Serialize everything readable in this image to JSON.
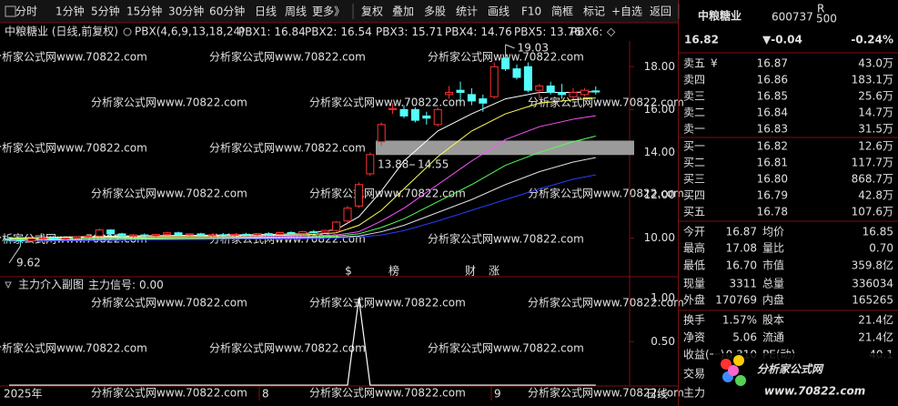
{
  "toolbar": [
    "分时",
    "1分钟",
    "5分钟",
    "15分钟",
    "30分钟",
    "60分钟",
    "日线",
    "周线",
    "更多》",
    "复权",
    "叠加",
    "多股",
    "统计",
    "画线",
    "F10",
    "简框",
    "标记",
    "+自选",
    "返回"
  ],
  "watermark": "分析家公式网www.70822.com",
  "chart_data": [
    {
      "type": "candlestick",
      "title": "中粮糖业 (日线,前复权)",
      "indicator": "PBX(4,6,9,13,18,24)",
      "ylim": [
        8.2,
        19.2
      ],
      "yticks": [
        {
          "value": 10,
          "label": "10.00"
        },
        {
          "value": 12,
          "label": "12.00"
        },
        {
          "value": 14,
          "label": "14.00"
        },
        {
          "value": 16,
          "label": "16.00"
        },
        {
          "value": 18,
          "label": "18.00"
        }
      ],
      "up_color": "#ff3232",
      "down_color": "#54fcfc",
      "candles": [
        [
          9.95,
          10.02,
          9.85,
          9.92
        ],
        [
          9.92,
          9.98,
          9.62,
          9.88
        ],
        [
          9.88,
          10.0,
          9.82,
          9.97
        ],
        [
          9.97,
          10.05,
          9.9,
          10.0
        ],
        [
          10.0,
          10.05,
          9.92,
          9.95
        ],
        [
          9.95,
          10.02,
          9.9,
          10.0
        ],
        [
          10.0,
          10.1,
          9.95,
          10.06
        ],
        [
          10.06,
          10.15,
          10.0,
          10.1
        ],
        [
          10.1,
          10.45,
          10.05,
          10.38
        ],
        [
          10.38,
          10.42,
          10.15,
          10.2
        ],
        [
          10.2,
          10.25,
          10.05,
          10.1
        ],
        [
          10.1,
          10.2,
          10.02,
          10.15
        ],
        [
          10.15,
          10.22,
          10.08,
          10.12
        ],
        [
          10.12,
          10.2,
          10.05,
          10.18
        ],
        [
          10.18,
          10.3,
          10.12,
          10.25
        ],
        [
          10.25,
          10.3,
          10.12,
          10.15
        ],
        [
          10.15,
          10.22,
          10.08,
          10.2
        ],
        [
          10.2,
          10.25,
          10.1,
          10.12
        ],
        [
          10.12,
          10.2,
          10.05,
          10.16
        ],
        [
          10.16,
          10.22,
          10.1,
          10.14
        ],
        [
          10.14,
          10.2,
          10.06,
          10.18
        ],
        [
          10.18,
          10.25,
          10.12,
          10.16
        ],
        [
          10.16,
          10.24,
          10.1,
          10.21
        ],
        [
          10.21,
          10.28,
          10.15,
          10.19
        ],
        [
          10.19,
          10.3,
          10.14,
          10.26
        ],
        [
          10.26,
          10.32,
          10.18,
          10.22
        ],
        [
          10.22,
          10.34,
          10.16,
          10.3
        ],
        [
          10.3,
          10.38,
          10.22,
          10.28
        ],
        [
          10.28,
          10.4,
          10.24,
          10.36
        ],
        [
          10.36,
          10.8,
          10.3,
          10.75
        ],
        [
          10.8,
          11.5,
          10.7,
          11.4
        ],
        [
          11.5,
          12.6,
          11.4,
          12.5
        ],
        [
          13.0,
          14.0,
          12.9,
          13.9
        ],
        [
          14.5,
          15.4,
          14.3,
          15.3
        ],
        [
          16.0,
          16.3,
          15.8,
          16.05
        ],
        [
          16.0,
          16.2,
          15.6,
          15.7
        ],
        [
          16.0,
          16.1,
          15.4,
          15.5
        ],
        [
          15.7,
          15.9,
          15.3,
          15.6
        ],
        [
          15.3,
          16.1,
          15.2,
          16.0
        ],
        [
          16.7,
          17.1,
          16.5,
          16.8
        ],
        [
          16.9,
          17.3,
          16.4,
          16.8
        ],
        [
          16.7,
          17.0,
          16.2,
          16.4
        ],
        [
          16.5,
          16.7,
          15.9,
          16.3
        ],
        [
          16.6,
          18.2,
          16.5,
          18.0
        ],
        [
          18.4,
          19.03,
          17.8,
          17.9
        ],
        [
          17.9,
          18.1,
          17.4,
          17.5
        ],
        [
          18.0,
          18.2,
          16.8,
          16.9
        ],
        [
          16.9,
          17.2,
          16.5,
          17.1
        ],
        [
          17.1,
          17.3,
          16.7,
          16.8
        ],
        [
          16.8,
          17.2,
          16.5,
          16.7
        ],
        [
          16.6,
          17.0,
          16.5,
          16.8
        ],
        [
          16.7,
          17.0,
          16.6,
          16.9
        ],
        [
          16.87,
          17.08,
          16.7,
          16.82
        ]
      ],
      "x": [
        0,
        10,
        20,
        26,
        29,
        31,
        33,
        35,
        38,
        41,
        44,
        47,
        50,
        52
      ],
      "series": [
        {
          "name": "PBX1:",
          "last": 16.84,
          "color": "#ffffff",
          "values": [
            10.0,
            10.1,
            10.15,
            10.2,
            10.4,
            11.0,
            12.2,
            13.6,
            15.0,
            15.8,
            16.5,
            16.8,
            16.8,
            16.84
          ]
        },
        {
          "name": "PBX2:",
          "last": 16.54,
          "color": "#ffff54",
          "values": [
            10.0,
            10.05,
            10.1,
            10.15,
            10.25,
            10.6,
            11.3,
            12.3,
            13.8,
            15.0,
            15.8,
            16.3,
            16.45,
            16.54
          ]
        },
        {
          "name": "PBX3:",
          "last": 15.71,
          "color": "#ff54ff",
          "values": [
            9.95,
            10.0,
            10.05,
            10.1,
            10.15,
            10.3,
            10.8,
            11.4,
            12.5,
            13.6,
            14.6,
            15.2,
            15.55,
            15.71
          ]
        },
        {
          "name": "PBX4:",
          "last": 14.76,
          "color": "#54ff54",
          "values": [
            9.95,
            10.0,
            10.02,
            10.05,
            10.1,
            10.2,
            10.5,
            10.9,
            11.7,
            12.5,
            13.4,
            14.0,
            14.5,
            14.76
          ]
        },
        {
          "name": "PBX5:",
          "last": 13.76,
          "color": "#e0e0e0",
          "values": [
            9.9,
            9.95,
            10.0,
            10.02,
            10.05,
            10.1,
            10.3,
            10.6,
            11.2,
            11.8,
            12.5,
            13.1,
            13.55,
            13.76
          ]
        },
        {
          "name": "PBX6:",
          "color": "#2a3cff",
          "values": [
            9.85,
            9.9,
            9.95,
            9.97,
            10.0,
            10.05,
            10.15,
            10.35,
            10.8,
            11.3,
            11.8,
            12.3,
            12.75,
            12.95
          ]
        }
      ],
      "high_label": 19.03,
      "low_label": 9.62,
      "zone": [
        13.88,
        14.55
      ],
      "events": [
        {
          "text": "$",
          "color": "#ff3232"
        },
        {
          "text": "榜",
          "color": "#ffaa00"
        },
        {
          "text": "财",
          "color": "#8cc8ff"
        },
        {
          "text": "涨",
          "color": "#ff5050"
        }
      ],
      "x_labels": [
        "2025年",
        "8",
        "9",
        "日线"
      ]
    },
    {
      "type": "line",
      "title": "主力介入副图",
      "ylim": [
        -0.01,
        1.1
      ],
      "yticks": [
        {
          "value": 0.5,
          "label": "0.50"
        },
        {
          "value": 1,
          "label": "1.00"
        }
      ],
      "series": [
        {
          "name": "主力信号:",
          "last": {
            "value": 0,
            "label": "0.00"
          },
          "color": "#ffffff",
          "x": [
            0,
            30,
            31,
            32,
            52
          ],
          "values": [
            0,
            0,
            1,
            0,
            0
          ]
        }
      ]
    }
  ],
  "quote": {
    "name": "中粮糖业",
    "code": "600737",
    "badge_top": "R",
    "badge_bottom": "500",
    "price": "16.82",
    "change": "▼-0.04",
    "pct": "-0.24%",
    "color": "#54ff54",
    "order_book": [
      {
        "label": "卖五",
        "icon": "¥",
        "price": "16.87",
        "volume": "43.0万",
        "color": "#ff3232"
      },
      {
        "label": "卖四",
        "price": "16.86",
        "volume": "183.1万",
        "color": "#e0e0e0"
      },
      {
        "label": "卖三",
        "price": "16.85",
        "volume": "25.6万",
        "color": "#54ff54"
      },
      {
        "label": "卖二",
        "price": "16.84",
        "volume": "14.7万",
        "color": "#54ff54"
      },
      {
        "label": "卖一",
        "price": "16.83",
        "volume": "31.5万",
        "color": "#54ff54"
      },
      {
        "label": "买一",
        "price": "16.82",
        "volume": "12.6万",
        "color": "#54ff54"
      },
      {
        "label": "买二",
        "price": "16.81",
        "volume": "117.7万",
        "color": "#54ff54"
      },
      {
        "label": "买三",
        "price": "16.80",
        "volume": "868.7万",
        "color": "#54ff54"
      },
      {
        "label": "买四",
        "price": "16.79",
        "volume": "42.8万",
        "color": "#54ff54"
      },
      {
        "label": "买五",
        "price": "16.78",
        "volume": "107.6万",
        "color": "#54ff54"
      }
    ],
    "stats": [
      {
        "l1": "今开",
        "v1": "16.87",
        "c1": "#ff3232",
        "l2": "均价",
        "v2": "16.85",
        "c2": "#54ff54"
      },
      {
        "l1": "最高",
        "v1": "17.08",
        "c1": "#ff3232",
        "l2": "量比",
        "v2": "0.70",
        "c2": "#54ff54"
      },
      {
        "l1": "最低",
        "v1": "16.70",
        "c1": "#54ff54",
        "l2": "市值",
        "v2": "359.8亿",
        "c2": "#e0e0e0"
      },
      {
        "l1": "现量",
        "v1": "3311",
        "c1": "#ff54ff",
        "l2": "总量",
        "v2": "336034",
        "c2": "#e0e0e0"
      },
      {
        "l1": "外盘",
        "v1": "170769",
        "c1": "#ff3232",
        "l2": "内盘",
        "v2": "165265",
        "c2": "#54ff54"
      },
      {
        "l1": "换手",
        "v1": "1.57%",
        "c1": "#e0e0e0",
        "l2": "股本",
        "v2": "21.4亿",
        "c2": "#e0e0e0"
      },
      {
        "l1": "净资",
        "v1": "5.06",
        "c1": "#e0e0e0",
        "l2": "流通",
        "v2": "21.4亿",
        "c2": "#e0e0e0"
      },
      {
        "l1": "收益(一)",
        "v1": "0.310",
        "c1": "#e0e0e0",
        "l2": "PE(动)",
        "v2": "40.1",
        "c2": "#e0e0e0"
      },
      {
        "l1": "交易"
      },
      {
        "l1": "主力"
      }
    ]
  },
  "logo": {
    "title": "分析家公式网",
    "url": "www.70822.com"
  }
}
